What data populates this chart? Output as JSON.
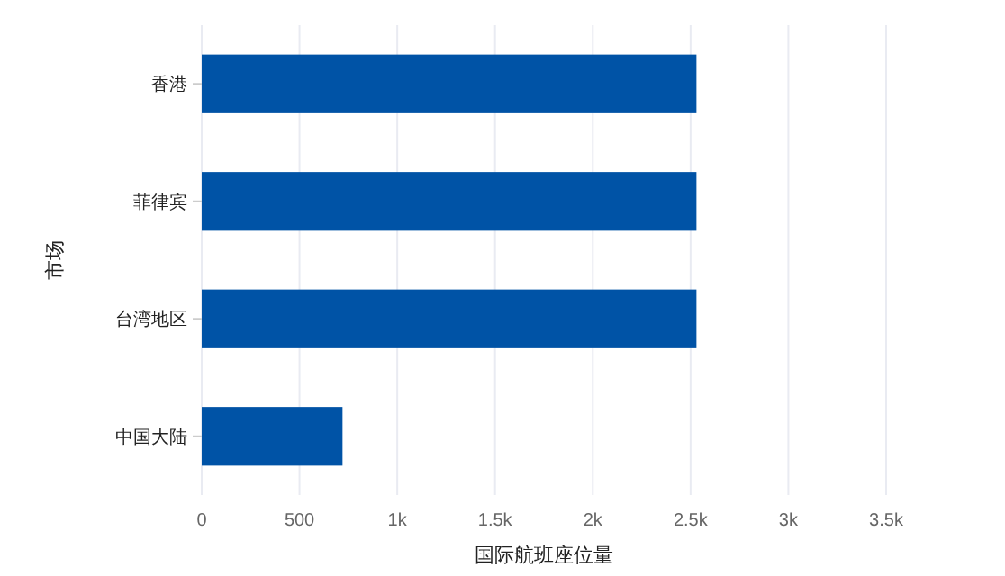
{
  "chart_data": {
    "type": "bar",
    "orientation": "horizontal",
    "xlabel": "国际航班座位量",
    "ylabel": "市场",
    "categories": [
      "香港",
      "菲律宾",
      "台湾地区",
      "中国大陆"
    ],
    "values": [
      2530,
      2530,
      2530,
      720
    ],
    "color": "#0053a6",
    "xlim": [
      0,
      3500
    ],
    "xticks": [
      0,
      500,
      {
        "value": 1000,
        "label": "1k"
      },
      {
        "value": 1500,
        "label": "1.5k"
      },
      {
        "value": 2000,
        "label": "2k"
      },
      {
        "value": 2500,
        "label": "2.5k"
      },
      {
        "value": 3000,
        "label": "3k"
      },
      {
        "value": 3500,
        "label": "3.5k"
      }
    ],
    "grid": "x"
  }
}
